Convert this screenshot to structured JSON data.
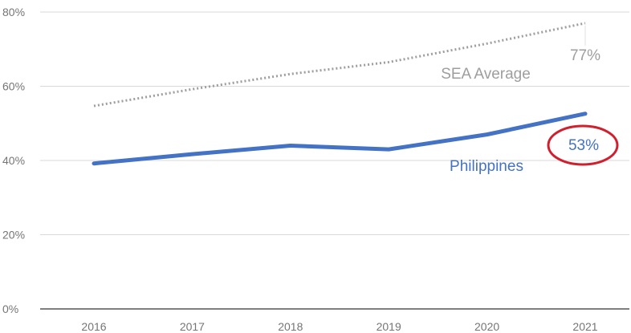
{
  "chart_data": {
    "type": "line",
    "title": "",
    "xlabel": "",
    "ylabel": "",
    "categories": [
      "2016",
      "2017",
      "2018",
      "2019",
      "2020",
      "2021"
    ],
    "ylim": [
      0,
      80
    ],
    "y_ticks": [
      "0%",
      "20%",
      "40%",
      "60%",
      "80%"
    ],
    "y_tick_values": [
      0,
      20,
      40,
      60,
      80
    ],
    "grid": true,
    "series": [
      {
        "name": "SEA Average",
        "values": [
          54.7,
          59.2,
          63.3,
          66.5,
          71.5,
          77
        ],
        "color": "#9e9e9e",
        "style": "dotted",
        "end_label": "77%"
      },
      {
        "name": "Philippines",
        "values": [
          39.2,
          41.7,
          44.0,
          43.0,
          47.0,
          52.6
        ],
        "color": "#4472c4",
        "style": "solid",
        "end_label": "53%",
        "highlight_color": "#d0202e"
      }
    ]
  }
}
